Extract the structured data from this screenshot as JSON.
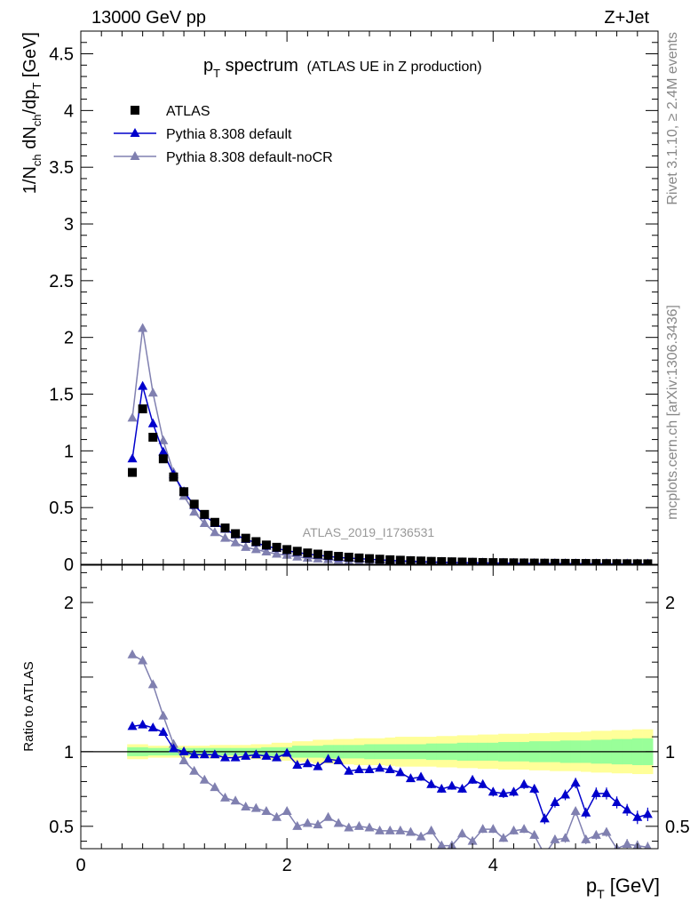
{
  "header": {
    "left": "13000 GeV pp",
    "right": "Z+Jet"
  },
  "side_labels": {
    "rivet": "Rivet 3.1.10, ≥ 2.4M events",
    "mcplots": "mcplots.cern.ch [arXiv:1306.3436]"
  },
  "analysis_id": "ATLAS_2019_I1736531",
  "colors": {
    "data": "#000000",
    "default": "#0000cc",
    "nocr": "#8080b0",
    "band_inner": "#99ff99",
    "band_outer": "#ffff99"
  },
  "chart_data": [
    {
      "type": "scatter",
      "title": "p_T spectrum",
      "title_main": "p",
      "title_sub": "T",
      "title_word": " spectrum",
      "title_note": "(ATLAS UE in Z production)",
      "ylabel": "1/N_ch dN_ch/dp_T [GeV]",
      "xlim": [
        0,
        5.6
      ],
      "ylim": [
        0,
        4.7
      ],
      "yticks": [
        0,
        0.5,
        1,
        1.5,
        2,
        2.5,
        3,
        3.5,
        4,
        4.5
      ],
      "ytick_labels": [
        "0",
        "0.5",
        "1",
        "1.5",
        "2",
        "2.5",
        "3",
        "3.5",
        "4",
        "4.5"
      ],
      "legend_position": "top-left",
      "x": [
        0.5,
        0.6,
        0.7,
        0.8,
        0.9,
        1.0,
        1.1,
        1.2,
        1.3,
        1.4,
        1.5,
        1.6,
        1.7,
        1.8,
        1.9,
        2.0,
        2.1,
        2.2,
        2.3,
        2.4,
        2.5,
        2.6,
        2.7,
        2.8,
        2.9,
        3.0,
        3.1,
        3.2,
        3.3,
        3.4,
        3.5,
        3.6,
        3.7,
        3.8,
        3.9,
        4.0,
        4.1,
        4.2,
        4.3,
        4.4,
        4.5,
        4.6,
        4.7,
        4.8,
        4.9,
        5.0,
        5.1,
        5.2,
        5.3,
        5.4,
        5.5
      ],
      "series": [
        {
          "name": "ATLAS",
          "values": [
            0.81,
            1.37,
            1.12,
            0.93,
            0.77,
            0.64,
            0.53,
            0.44,
            0.37,
            0.32,
            0.27,
            0.23,
            0.2,
            0.17,
            0.15,
            0.13,
            0.115,
            0.1,
            0.09,
            0.08,
            0.07,
            0.063,
            0.056,
            0.05,
            0.045,
            0.04,
            0.036,
            0.032,
            0.029,
            0.026,
            0.024,
            0.022,
            0.02,
            0.018,
            0.016,
            0.015,
            0.014,
            0.013,
            0.012,
            0.011,
            0.01,
            0.009,
            0.0085,
            0.008,
            0.0075,
            0.007,
            0.0065,
            0.006,
            0.0055,
            0.005,
            0.0048
          ]
        },
        {
          "name": "Pythia 8.308 default",
          "values": [
            0.93,
            1.57,
            1.24,
            0.99,
            0.79,
            0.64,
            0.52,
            0.43,
            0.36,
            0.31,
            0.26,
            0.22,
            0.19,
            0.16,
            0.14,
            0.12,
            0.105,
            0.09,
            0.08,
            0.07,
            0.06,
            0.055,
            0.05,
            0.044,
            0.039,
            0.034,
            0.03,
            0.027,
            0.024,
            0.021,
            0.019,
            0.017,
            0.015,
            0.014,
            0.013,
            0.012,
            0.011,
            0.01,
            0.009,
            0.008,
            0.007,
            0.0065,
            0.006,
            0.0055,
            0.005,
            0.0048,
            0.0045,
            0.004,
            0.0035,
            0.003,
            0.0028
          ]
        },
        {
          "name": "Pythia 8.308 default-noCR",
          "values": [
            1.29,
            2.08,
            1.51,
            1.09,
            0.81,
            0.6,
            0.46,
            0.36,
            0.28,
            0.23,
            0.19,
            0.15,
            0.13,
            0.11,
            0.09,
            0.08,
            0.065,
            0.055,
            0.048,
            0.042,
            0.036,
            0.03,
            0.026,
            0.023,
            0.02,
            0.018,
            0.016,
            0.014,
            0.012,
            0.011,
            0.01,
            0.009,
            0.008,
            0.0075,
            0.007,
            0.0065,
            0.006,
            0.0055,
            0.005,
            0.0045,
            0.004,
            0.0038,
            0.0035,
            0.0032,
            0.003,
            0.0028,
            0.0026,
            0.0024,
            0.0022,
            0.002,
            0.0018
          ]
        }
      ]
    },
    {
      "type": "line",
      "ylabel": "Ratio to ATLAS",
      "xlabel_main": "p",
      "xlabel_sub": "T",
      "xlabel_unit": " [GeV]",
      "xlim": [
        0,
        5.6
      ],
      "ylim": [
        0.35,
        2.25
      ],
      "xticks": [
        0,
        2,
        4
      ],
      "xtick_labels": [
        "0",
        "2",
        "4"
      ],
      "yticks": [
        0.5,
        1,
        2
      ],
      "ytick_labels": [
        "0.5",
        "1",
        "2"
      ],
      "x": [
        0.5,
        0.6,
        0.7,
        0.8,
        0.9,
        1.0,
        1.1,
        1.2,
        1.3,
        1.4,
        1.5,
        1.6,
        1.7,
        1.8,
        1.9,
        2.0,
        2.1,
        2.2,
        2.3,
        2.4,
        2.5,
        2.6,
        2.7,
        2.8,
        2.9,
        3.0,
        3.1,
        3.2,
        3.3,
        3.4,
        3.5,
        3.6,
        3.7,
        3.8,
        3.9,
        4.0,
        4.1,
        4.2,
        4.3,
        4.4,
        4.5,
        4.6,
        4.7,
        4.8,
        4.9,
        5.0,
        5.1,
        5.2,
        5.3,
        5.4,
        5.5
      ],
      "band_inner_halfwidth": [
        0.03,
        0.03,
        0.025,
        0.025,
        0.025,
        0.025,
        0.025,
        0.025,
        0.025,
        0.025,
        0.025,
        0.025,
        0.025,
        0.03,
        0.03,
        0.03,
        0.04,
        0.04,
        0.04,
        0.045,
        0.045,
        0.045,
        0.045,
        0.05,
        0.05,
        0.05,
        0.05,
        0.05,
        0.05,
        0.055,
        0.055,
        0.055,
        0.06,
        0.06,
        0.06,
        0.06,
        0.065,
        0.065,
        0.065,
        0.07,
        0.07,
        0.07,
        0.075,
        0.075,
        0.075,
        0.08,
        0.08,
        0.085,
        0.085,
        0.09,
        0.09
      ],
      "band_outer_halfwidth": [
        0.05,
        0.05,
        0.04,
        0.04,
        0.04,
        0.04,
        0.04,
        0.04,
        0.045,
        0.045,
        0.045,
        0.045,
        0.05,
        0.05,
        0.06,
        0.06,
        0.07,
        0.07,
        0.08,
        0.08,
        0.085,
        0.085,
        0.09,
        0.09,
        0.09,
        0.095,
        0.1,
        0.1,
        0.1,
        0.1,
        0.105,
        0.105,
        0.11,
        0.11,
        0.115,
        0.115,
        0.12,
        0.12,
        0.12,
        0.125,
        0.125,
        0.13,
        0.13,
        0.13,
        0.135,
        0.14,
        0.14,
        0.145,
        0.145,
        0.15,
        0.15
      ],
      "series": [
        {
          "name": "Pythia 8.308 default",
          "values": [
            1.17,
            1.18,
            1.16,
            1.13,
            1.02,
            1.0,
            0.98,
            0.98,
            0.98,
            0.96,
            0.96,
            0.97,
            0.98,
            0.97,
            0.96,
            0.99,
            0.91,
            0.92,
            0.9,
            0.95,
            0.94,
            0.87,
            0.88,
            0.88,
            0.89,
            0.88,
            0.86,
            0.82,
            0.83,
            0.78,
            0.75,
            0.77,
            0.75,
            0.81,
            0.78,
            0.73,
            0.72,
            0.73,
            0.78,
            0.75,
            0.55,
            0.66,
            0.71,
            0.79,
            0.59,
            0.72,
            0.72,
            0.66,
            0.61,
            0.56,
            0.58
          ],
          "errors": [
            0.015,
            0.015,
            0.015,
            0.015,
            0.015,
            0.015,
            0.015,
            0.015,
            0.015,
            0.015,
            0.015,
            0.015,
            0.015,
            0.015,
            0.015,
            0.015,
            0.02,
            0.02,
            0.02,
            0.02,
            0.02,
            0.02,
            0.02,
            0.02,
            0.02,
            0.02,
            0.02,
            0.02,
            0.025,
            0.025,
            0.025,
            0.025,
            0.025,
            0.025,
            0.025,
            0.03,
            0.03,
            0.03,
            0.03,
            0.03,
            0.035,
            0.035,
            0.035,
            0.035,
            0.035,
            0.04,
            0.04,
            0.04,
            0.04,
            0.045,
            0.045
          ]
        },
        {
          "name": "Pythia 8.308 default-noCR",
          "values": [
            1.65,
            1.61,
            1.45,
            1.24,
            1.05,
            0.94,
            0.87,
            0.81,
            0.76,
            0.69,
            0.67,
            0.63,
            0.62,
            0.6,
            0.56,
            0.6,
            0.5,
            0.52,
            0.51,
            0.56,
            0.52,
            0.49,
            0.5,
            0.49,
            0.47,
            0.47,
            0.47,
            0.46,
            0.43,
            0.47,
            0.37,
            0.37,
            0.45,
            0.4,
            0.48,
            0.48,
            0.42,
            0.47,
            0.48,
            0.44,
            0.31,
            0.41,
            0.42,
            0.6,
            0.41,
            0.44,
            0.46,
            0.35,
            0.38,
            0.37,
            0.36
          ],
          "errors": [
            0.015,
            0.015,
            0.015,
            0.015,
            0.015,
            0.015,
            0.015,
            0.015,
            0.015,
            0.015,
            0.015,
            0.015,
            0.015,
            0.015,
            0.015,
            0.015,
            0.015,
            0.015,
            0.015,
            0.02,
            0.02,
            0.02,
            0.02,
            0.02,
            0.02,
            0.02,
            0.02,
            0.02,
            0.02,
            0.02,
            0.02,
            0.025,
            0.025,
            0.025,
            0.025,
            0.025,
            0.025,
            0.025,
            0.025,
            0.025,
            0.03,
            0.03,
            0.03,
            0.03,
            0.03,
            0.03,
            0.03,
            0.035,
            0.035,
            0.035,
            0.035
          ]
        }
      ]
    }
  ]
}
